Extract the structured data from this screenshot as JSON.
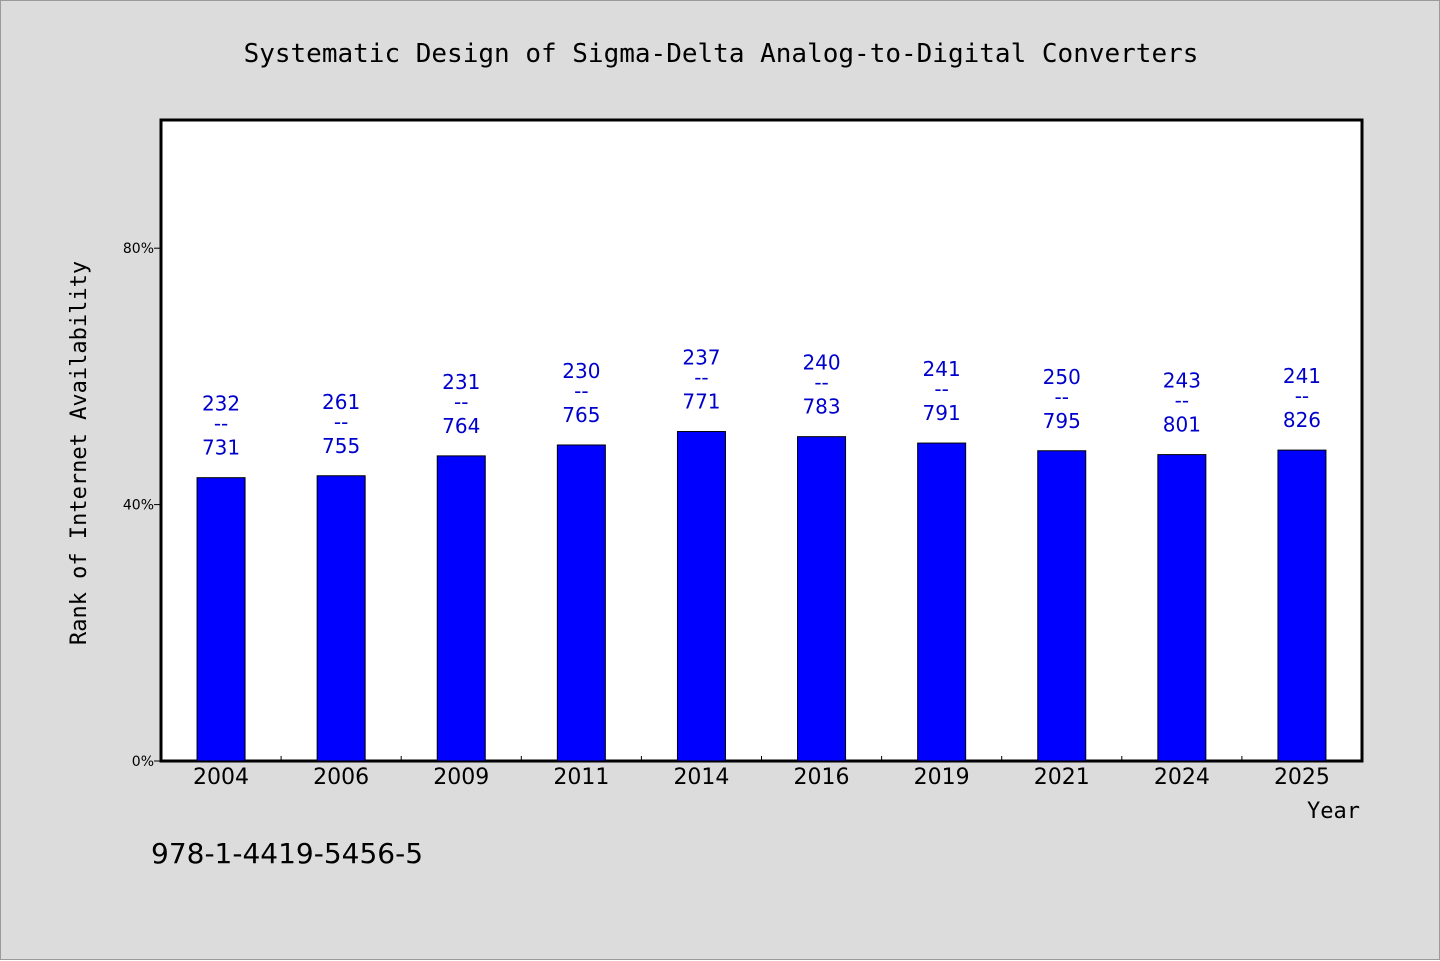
{
  "chart_data": {
    "type": "bar",
    "title": "Systematic Design of Sigma-Delta Analog-to-Digital Converters",
    "xlabel": "Year",
    "ylabel": "Rank of Internet Availability",
    "categories": [
      "2004",
      "2006",
      "2009",
      "2011",
      "2014",
      "2016",
      "2019",
      "2021",
      "2024",
      "2025"
    ],
    "values": [
      44.2,
      44.5,
      47.6,
      49.3,
      51.4,
      50.6,
      49.6,
      48.4,
      47.8,
      48.5
    ],
    "value_unit": "%",
    "data_labels": [
      {
        "numerator": "232",
        "separator": "--",
        "denominator": "731"
      },
      {
        "numerator": "261",
        "separator": "--",
        "denominator": "755"
      },
      {
        "numerator": "231",
        "separator": "--",
        "denominator": "764"
      },
      {
        "numerator": "230",
        "separator": "--",
        "denominator": "765"
      },
      {
        "numerator": "237",
        "separator": "--",
        "denominator": "771"
      },
      {
        "numerator": "240",
        "separator": "--",
        "denominator": "783"
      },
      {
        "numerator": "241",
        "separator": "--",
        "denominator": "791"
      },
      {
        "numerator": "250",
        "separator": "--",
        "denominator": "795"
      },
      {
        "numerator": "243",
        "separator": "--",
        "denominator": "801"
      },
      {
        "numerator": "241",
        "separator": "--",
        "denominator": "826"
      }
    ],
    "y_ticks": [
      {
        "value": 0,
        "label": "0%"
      },
      {
        "value": 40,
        "label": "40%"
      },
      {
        "value": 80,
        "label": "80%"
      }
    ],
    "ylim": [
      0,
      100
    ],
    "grid": false,
    "legend": "none",
    "bar_color": "#0000ff",
    "label_color": "#0000cc",
    "footer_text": "978-1-4419-5456-5"
  }
}
